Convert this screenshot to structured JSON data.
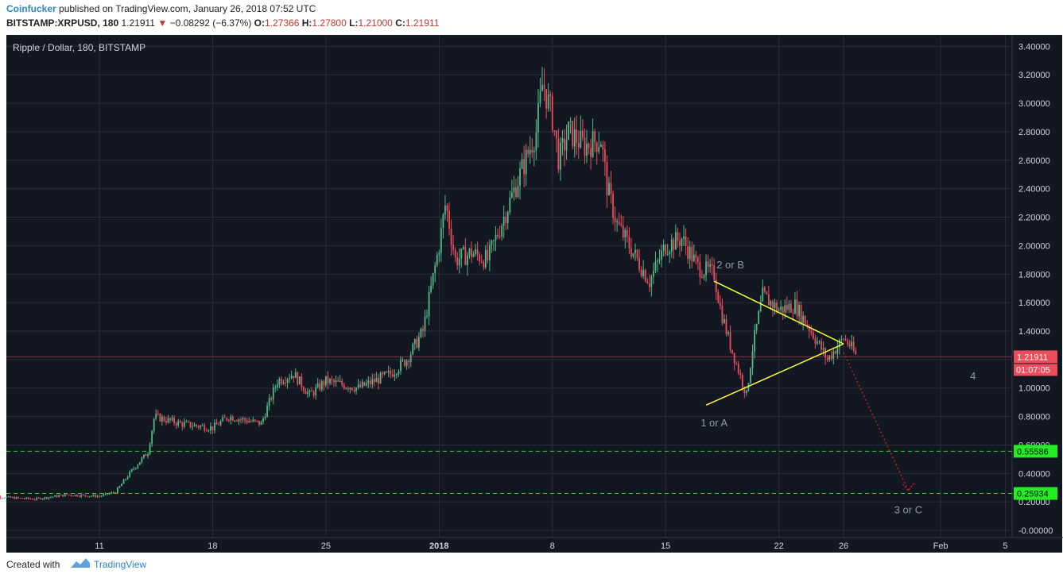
{
  "header": {
    "author": "Coinfucker",
    "published": "published on TradingView.com, January 26, 2018 07:52 UTC",
    "symbol": "BITSTAMP:XRPUSD, 180",
    "last": "1.21911",
    "change_arrow": "▼",
    "change": "−0.08292 (−6.37%)",
    "o_label": "O:",
    "o": "1.27366",
    "h_label": "H:",
    "h": "1.27800",
    "l_label": "L:",
    "l": "1.21000",
    "c_label": "C:",
    "c": "1.21911"
  },
  "footer": {
    "created_with": "Created with",
    "brand": "TradingView"
  },
  "colors": {
    "background": "#131722",
    "grid": "#2a2e39",
    "up": "#53b987",
    "down": "#eb4d5c",
    "triangle": "#ffff33",
    "level_line": "#22dd22",
    "price_badge": "#eb4d5c",
    "level_badge": "#22ee22",
    "projection": "#cc2222",
    "wave_label": "#8f98a9"
  },
  "chart_data": {
    "type": "candlestick",
    "title": "Ripple / Dollar, 180, BITSTAMP",
    "ylim": [
      -0.05,
      3.48
    ],
    "y_ticks": [
      "3.40000",
      "3.20000",
      "3.00000",
      "2.80000",
      "2.60000",
      "2.40000",
      "2.20000",
      "2.00000",
      "1.80000",
      "1.60000",
      "1.40000",
      "1.20000",
      "1.00000",
      "0.80000",
      "0.60000",
      "0.40000",
      "0.20000",
      "-0.00000"
    ],
    "x_ticks": [
      "11",
      "18",
      "25",
      "2018",
      "8",
      "15",
      "22",
      "26",
      "Feb",
      "5"
    ],
    "price_path": [
      {
        "d": "Dec 4",
        "v": 0.24
      },
      {
        "d": "Dec 7",
        "v": 0.22
      },
      {
        "d": "Dec 9",
        "v": 0.25
      },
      {
        "d": "Dec 11",
        "v": 0.24
      },
      {
        "d": "Dec 12",
        "v": 0.27
      },
      {
        "d": "Dec 13",
        "v": 0.42
      },
      {
        "d": "Dec 14",
        "v": 0.55
      },
      {
        "d": "Dec 14",
        "v": 0.8
      },
      {
        "d": "Dec 16",
        "v": 0.75
      },
      {
        "d": "Dec 18",
        "v": 0.72
      },
      {
        "d": "Dec 19",
        "v": 0.8
      },
      {
        "d": "Dec 21",
        "v": 0.75
      },
      {
        "d": "Dec 22",
        "v": 1.05
      },
      {
        "d": "Dec 23",
        "v": 1.1
      },
      {
        "d": "Dec 24",
        "v": 0.95
      },
      {
        "d": "Dec 25",
        "v": 1.05
      },
      {
        "d": "Dec 27",
        "v": 1.0
      },
      {
        "d": "Dec 28",
        "v": 1.05
      },
      {
        "d": "Dec 29",
        "v": 1.1
      },
      {
        "d": "Dec 30",
        "v": 1.2
      },
      {
        "d": "Dec 31",
        "v": 1.4
      },
      {
        "d": "Jan 1",
        "v": 2.0
      },
      {
        "d": "Jan 1",
        "v": 2.3
      },
      {
        "d": "Jan 2",
        "v": 1.9
      },
      {
        "d": "Jan 3",
        "v": 1.95
      },
      {
        "d": "Jan 4",
        "v": 1.9
      },
      {
        "d": "Jan 5",
        "v": 2.2
      },
      {
        "d": "Jan 6",
        "v": 2.5
      },
      {
        "d": "Jan 7",
        "v": 2.8
      },
      {
        "d": "Jan 7",
        "v": 3.15
      },
      {
        "d": "Jan 8",
        "v": 2.9
      },
      {
        "d": "Jan 8",
        "v": 2.6
      },
      {
        "d": "Jan 9",
        "v": 2.8
      },
      {
        "d": "Jan 10",
        "v": 2.7
      },
      {
        "d": "Jan 11",
        "v": 2.75
      },
      {
        "d": "Jan 11",
        "v": 2.4
      },
      {
        "d": "Jan 12",
        "v": 2.15
      },
      {
        "d": "Jan 13",
        "v": 1.95
      },
      {
        "d": "Jan 14",
        "v": 1.75
      },
      {
        "d": "Jan 15",
        "v": 2.0
      },
      {
        "d": "Jan 16",
        "v": 2.05
      },
      {
        "d": "Jan 17",
        "v": 1.85
      },
      {
        "d": "Jan 18",
        "v": 1.8
      },
      {
        "d": "Jan 18",
        "v": 1.55
      },
      {
        "d": "Jan 19",
        "v": 1.3
      },
      {
        "d": "Jan 20",
        "v": 0.95
      },
      {
        "d": "Jan 20",
        "v": 1.3
      },
      {
        "d": "Jan 21",
        "v": 1.65
      },
      {
        "d": "Jan 22",
        "v": 1.55
      },
      {
        "d": "Jan 23",
        "v": 1.58
      },
      {
        "d": "Jan 24",
        "v": 1.4
      },
      {
        "d": "Jan 25",
        "v": 1.2
      },
      {
        "d": "Jan 26",
        "v": 1.35
      },
      {
        "d": "Jan 26",
        "v": 1.3
      },
      {
        "d": "Jan 26",
        "v": 1.21911
      }
    ],
    "triangle": {
      "upper": [
        {
          "d": "Jan 18",
          "v": 1.75
        },
        {
          "d": "Jan 26",
          "v": 1.31
        }
      ],
      "lower": [
        {
          "d": "Jan 18",
          "v": 0.88
        },
        {
          "d": "Jan 26",
          "v": 1.31
        }
      ]
    },
    "levels": [
      {
        "name": "level_1",
        "value": 0.55586,
        "label": "0.55586"
      },
      {
        "name": "level_2",
        "value": 0.25934,
        "label": "0.25934"
      }
    ],
    "last_price": {
      "value": 1.21911,
      "label": "1.21911",
      "timer": "01:07:05"
    },
    "projection": [
      {
        "d": "Jan 26",
        "v": 1.25
      },
      {
        "d": "Jan 30",
        "v": 0.28
      }
    ],
    "annotations": [
      {
        "text": "2 or B",
        "d": "Jan 19",
        "v": 1.84
      },
      {
        "text": "1 or A",
        "d": "Jan 18",
        "v": 0.73
      },
      {
        "text": "3 or C",
        "d": "Jan 30",
        "v": 0.12
      },
      {
        "text": "4",
        "d": "Feb 3",
        "v": 1.06
      }
    ]
  }
}
